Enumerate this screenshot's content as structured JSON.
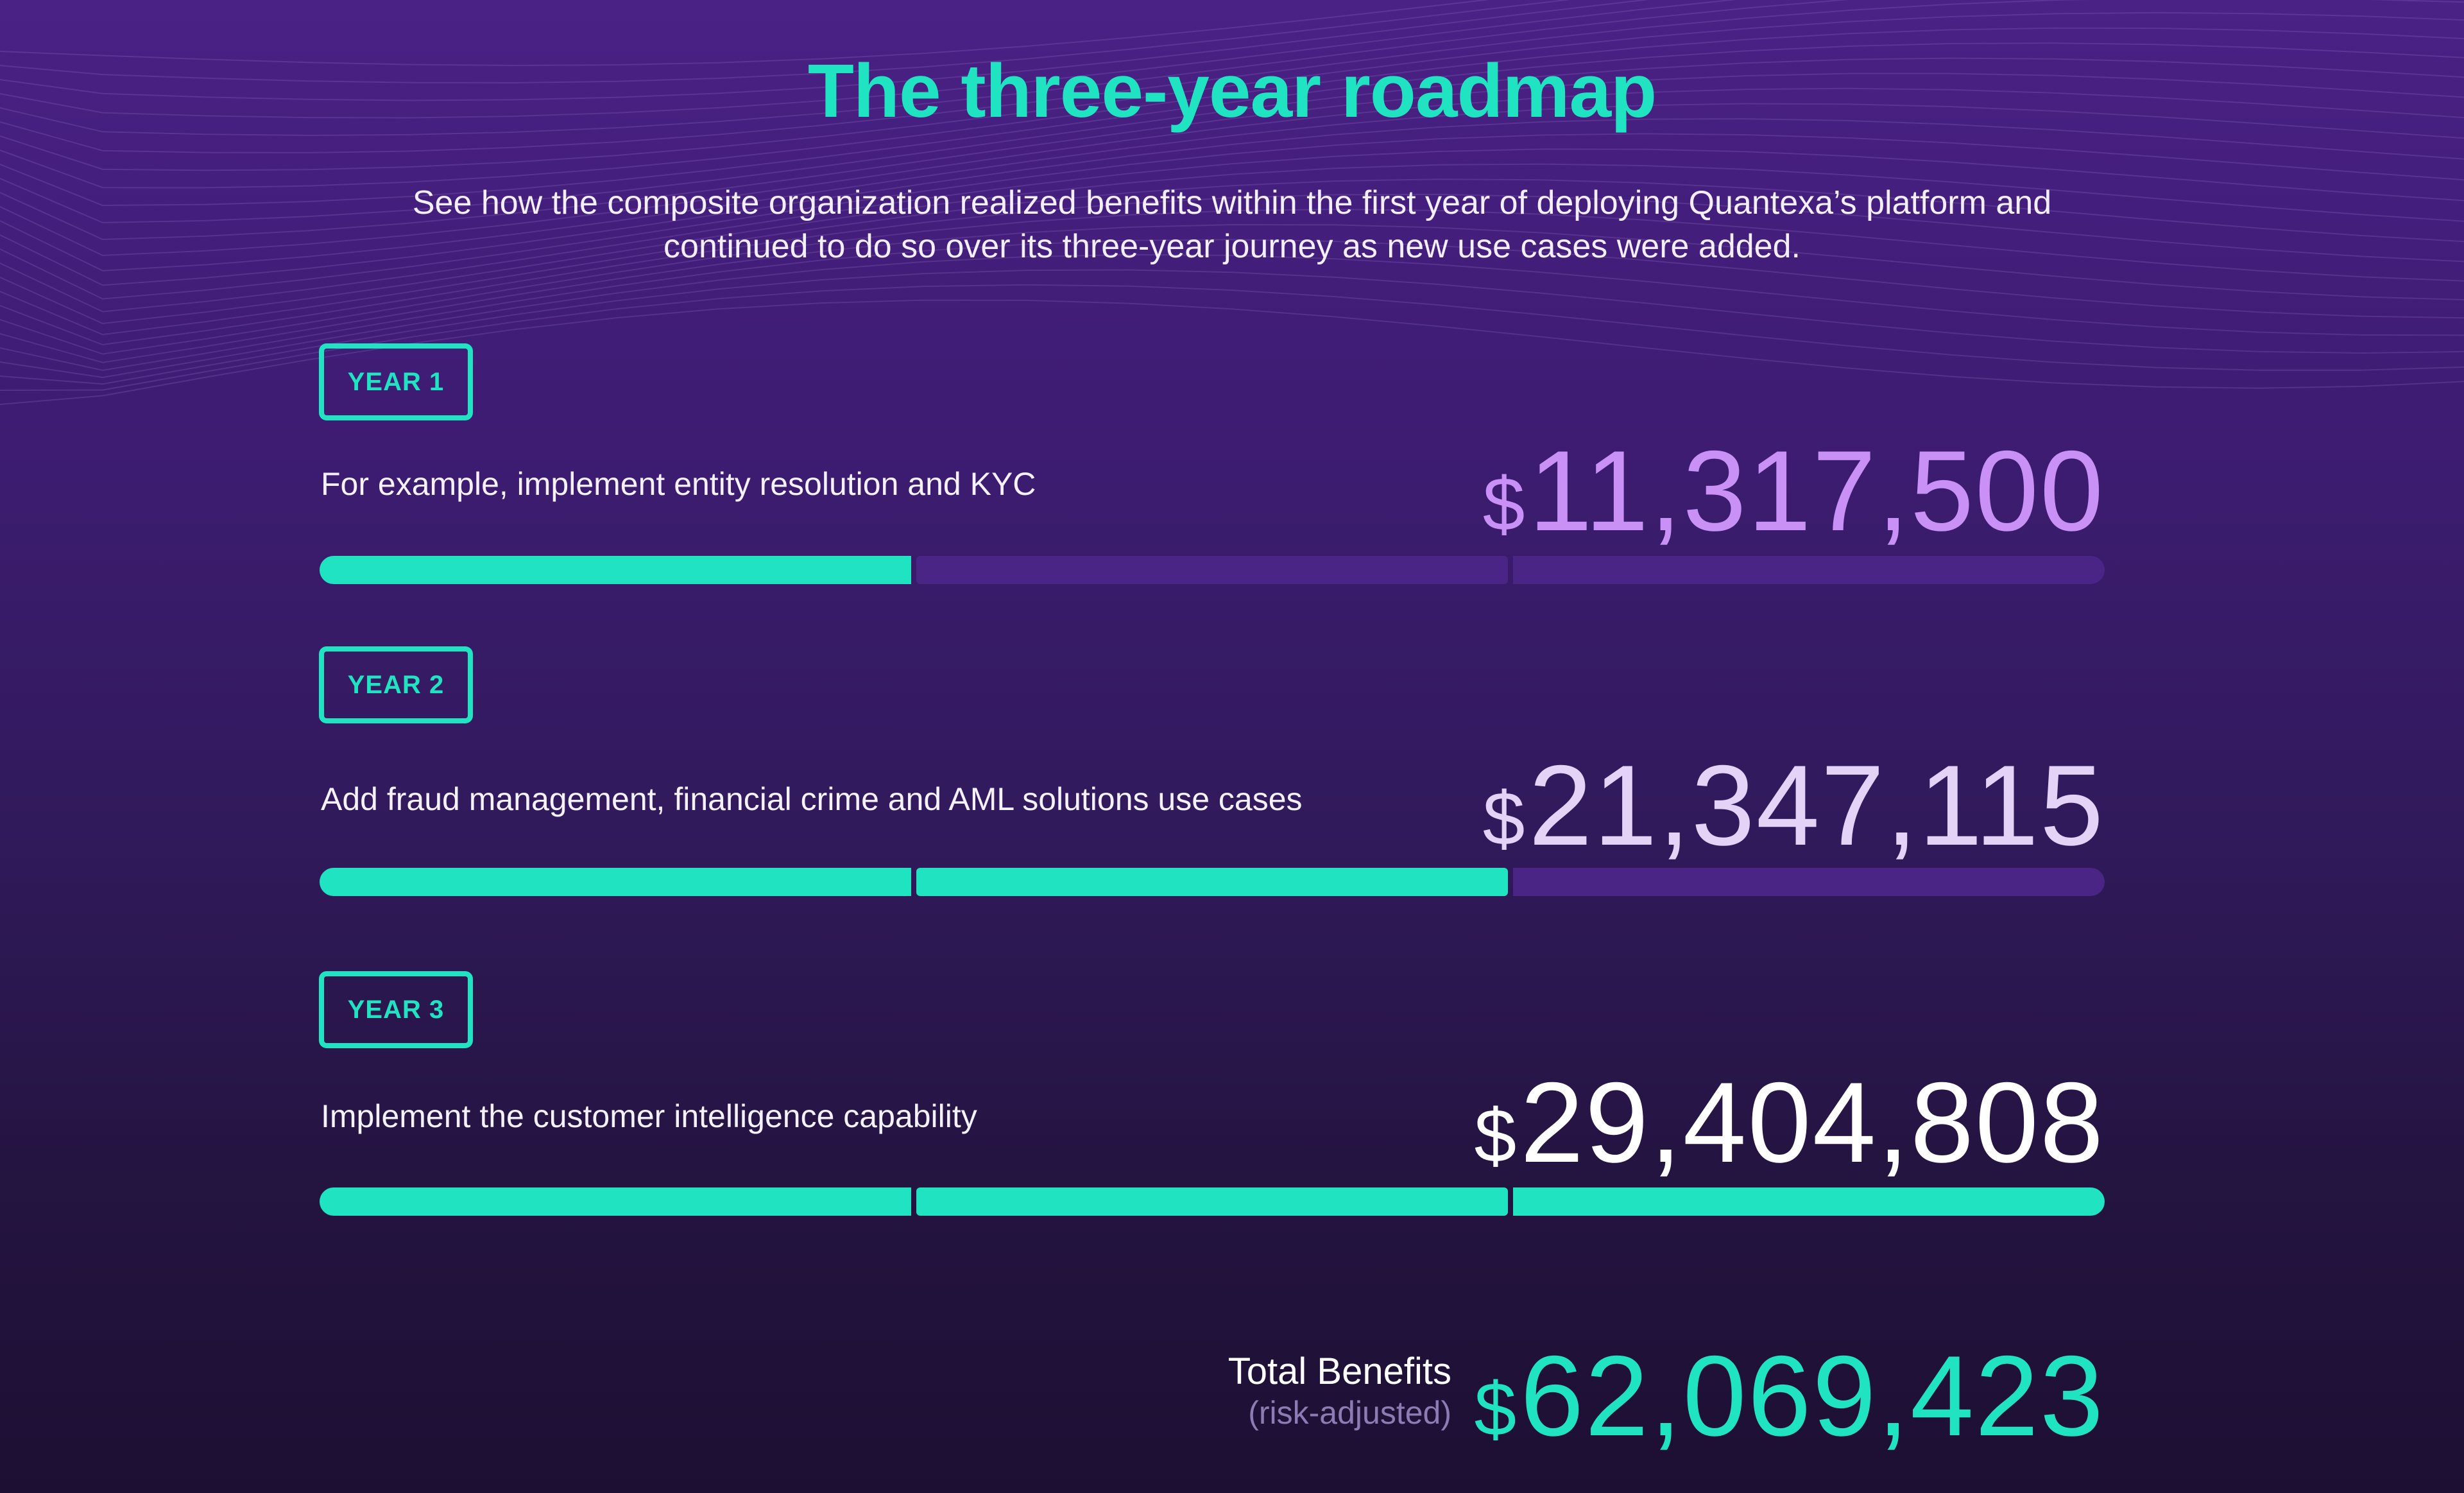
{
  "header": {
    "title": "The three-year roadmap",
    "subtitle": "See how the composite organization realized benefits within the first year of deploying Quantexa’s platform and continued to do so over its three-year journey as new use cases were added."
  },
  "colors": {
    "accent": "#1fe3c1",
    "bar_empty": "#4a2586",
    "year1_amount": "#c990f5",
    "year2_amount": "#e4d2f7",
    "year3_amount": "#ffffff",
    "total_amount": "#1fe3c1"
  },
  "roadmap": [
    {
      "year_label": "YEAR 1",
      "description": "For example, implement entity resolution and KYC",
      "currency": "$",
      "amount": "11,317,500",
      "filled_segments": 1,
      "total_segments": 3
    },
    {
      "year_label": "YEAR 2",
      "description": "Add fraud management, financial crime and AML solutions use cases",
      "currency": "$",
      "amount": "21,347,115",
      "filled_segments": 2,
      "total_segments": 3
    },
    {
      "year_label": "YEAR 3",
      "description": "Implement the customer intelligence capability",
      "currency": "$",
      "amount": "29,404,808",
      "filled_segments": 3,
      "total_segments": 3
    }
  ],
  "total": {
    "label": "Total Benefits",
    "sublabel": "(risk-adjusted)",
    "currency": "$",
    "amount": "62,069,423"
  }
}
